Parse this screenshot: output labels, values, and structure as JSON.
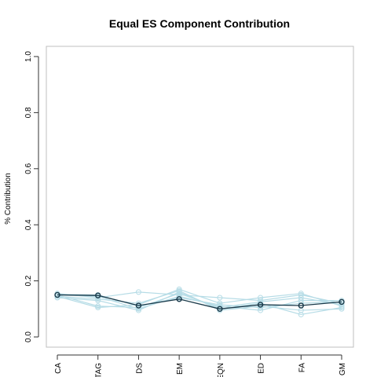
{
  "chart_data": {
    "type": "line",
    "title": "Equal ES Component Contribution",
    "xlabel": "",
    "ylabel": "% Contribution",
    "categories": [
      "CA",
      "CTAG",
      "DS",
      "EM",
      "EQN",
      "ED",
      "FA",
      "GM"
    ],
    "ylim": [
      0,
      1
    ],
    "yticks": [
      "0.0",
      "0.2",
      "0.4",
      "0.6",
      "0.8",
      "1.0"
    ],
    "grid": false,
    "legend": "none",
    "colors": {
      "highlight": "#1a3a4a",
      "background": "#b6dce6"
    },
    "series": [
      {
        "values": [
          0.15,
          0.148,
          0.112,
          0.135,
          0.1,
          0.115,
          0.112,
          0.125
        ],
        "highlight": true
      },
      {
        "values": [
          0.155,
          0.14,
          0.16,
          0.15,
          0.14,
          0.13,
          0.15,
          0.12
        ]
      },
      {
        "values": [
          0.145,
          0.105,
          0.115,
          0.17,
          0.12,
          0.14,
          0.155,
          0.11
        ]
      },
      {
        "values": [
          0.14,
          0.13,
          0.095,
          0.16,
          0.1,
          0.12,
          0.08,
          0.105
        ]
      },
      {
        "values": [
          0.15,
          0.145,
          0.1,
          0.145,
          0.11,
          0.095,
          0.13,
          0.13
        ]
      },
      {
        "values": [
          0.145,
          0.135,
          0.12,
          0.165,
          0.095,
          0.11,
          0.095,
          0.1
        ]
      },
      {
        "values": [
          0.15,
          0.11,
          0.105,
          0.155,
          0.105,
          0.125,
          0.14,
          0.115
        ]
      },
      {
        "values": [
          0.152,
          0.15,
          0.11,
          0.14,
          0.115,
          0.105,
          0.12,
          0.125
        ]
      }
    ]
  }
}
